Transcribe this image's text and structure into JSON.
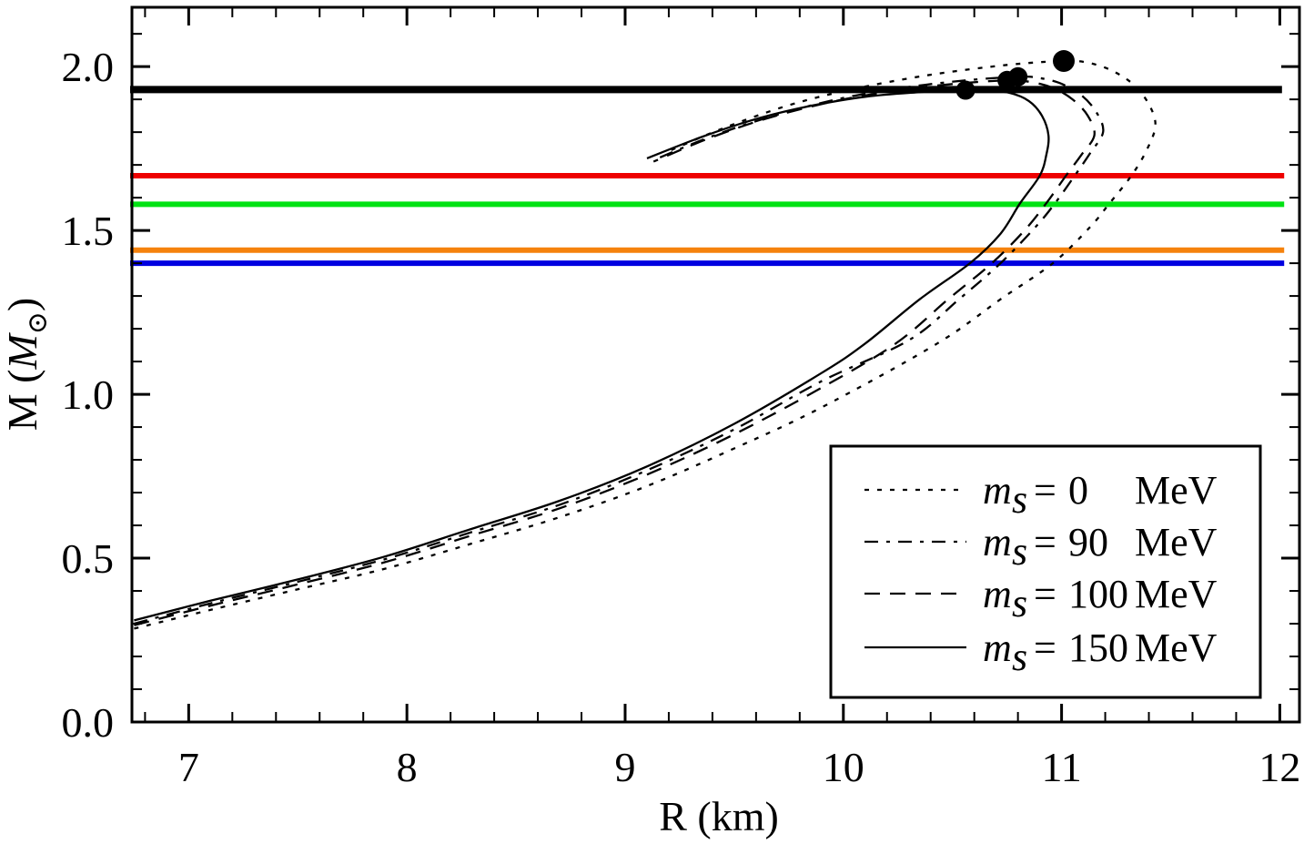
{
  "chart_data": {
    "type": "line",
    "title": "",
    "xlabel": "R (km)",
    "ylabel_pre": "M (",
    "ylabel_M": "M",
    "ylabel_sun": "⊙",
    "ylabel_close": ")",
    "xlim": [
      6.74,
      12.09
    ],
    "ylim": [
      0,
      2.181
    ],
    "grid": false,
    "x_major_ticks": [
      {
        "v": 7,
        "label": "7"
      },
      {
        "v": 8,
        "label": "8"
      },
      {
        "v": 9,
        "label": "9"
      },
      {
        "v": 10,
        "label": "10"
      },
      {
        "v": 11,
        "label": "11"
      },
      {
        "v": 12,
        "label": "12"
      }
    ],
    "x_minor_step": 0.2,
    "y_major_ticks": [
      {
        "v": 0.0,
        "label": "0.0"
      },
      {
        "v": 0.5,
        "label": "0.5"
      },
      {
        "v": 1.0,
        "label": "1.0"
      },
      {
        "v": 1.5,
        "label": "1.5"
      },
      {
        "v": 2.0,
        "label": "2.0"
      }
    ],
    "y_minor_step": 0.1,
    "horizontal_lines": [
      {
        "name": "mass-limit-black",
        "color": "#000000",
        "M": 1.93,
        "R_start": 6.74,
        "R_end": 12.01,
        "thickness": 8
      },
      {
        "name": "mass-limit-red",
        "color": "#ee0000",
        "M": 1.667,
        "R_start": 6.74,
        "R_end": 12.02,
        "thickness": 6
      },
      {
        "name": "mass-limit-green",
        "color": "#00e213",
        "M": 1.58,
        "R_start": 6.74,
        "R_end": 12.02,
        "thickness": 6
      },
      {
        "name": "mass-limit-orange",
        "color": "#f5820c",
        "M": 1.44,
        "R_start": 6.74,
        "R_end": 12.02,
        "thickness": 6
      },
      {
        "name": "mass-limit-blue",
        "color": "#0000e0",
        "M": 1.4,
        "R_start": 6.74,
        "R_end": 12.02,
        "thickness": 6
      }
    ],
    "series": [
      {
        "id": "ms0",
        "ms_value": "0",
        "label": "m_s = 0 MeV",
        "style": "dotted",
        "points": [
          [
            6.75,
            0.285
          ],
          [
            7.1,
            0.342
          ],
          [
            7.5,
            0.405
          ],
          [
            7.9,
            0.468
          ],
          [
            8.3,
            0.545
          ],
          [
            8.7,
            0.625
          ],
          [
            9.1,
            0.72
          ],
          [
            9.5,
            0.835
          ],
          [
            9.9,
            0.96
          ],
          [
            10.43,
            1.155
          ],
          [
            10.72,
            1.29
          ],
          [
            10.96,
            1.4
          ],
          [
            11.13,
            1.51
          ],
          [
            11.22,
            1.583
          ],
          [
            11.32,
            1.667
          ],
          [
            11.39,
            1.745
          ],
          [
            11.43,
            1.82
          ],
          [
            11.4,
            1.885
          ],
          [
            11.33,
            1.945
          ],
          [
            11.23,
            1.988
          ],
          [
            11.12,
            2.012
          ],
          [
            11.01,
            2.017
          ],
          [
            10.75,
            2.005
          ],
          [
            10.4,
            1.975
          ],
          [
            10.05,
            1.932
          ],
          [
            9.75,
            1.882
          ],
          [
            9.45,
            1.812
          ],
          [
            9.2,
            1.742
          ]
        ]
      },
      {
        "id": "ms90",
        "ms_value": "90",
        "label": "m_s = 90 MeV",
        "style": "dashdot",
        "points": [
          [
            6.75,
            0.3
          ],
          [
            7.1,
            0.362
          ],
          [
            7.5,
            0.428
          ],
          [
            7.9,
            0.497
          ],
          [
            8.3,
            0.58
          ],
          [
            8.7,
            0.663
          ],
          [
            9.1,
            0.768
          ],
          [
            9.5,
            0.893
          ],
          [
            9.9,
            1.04
          ],
          [
            10.3,
            1.165
          ],
          [
            10.53,
            1.29
          ],
          [
            10.72,
            1.4
          ],
          [
            10.88,
            1.51
          ],
          [
            10.97,
            1.583
          ],
          [
            11.06,
            1.667
          ],
          [
            11.13,
            1.735
          ],
          [
            11.19,
            1.8
          ],
          [
            11.16,
            1.86
          ],
          [
            11.09,
            1.913
          ],
          [
            10.99,
            1.95
          ],
          [
            10.89,
            1.966
          ],
          [
            10.8,
            1.969
          ],
          [
            10.56,
            1.958
          ],
          [
            10.27,
            1.935
          ],
          [
            9.97,
            1.9
          ],
          [
            9.67,
            1.848
          ],
          [
            9.4,
            1.788
          ],
          [
            9.15,
            1.72
          ]
        ]
      },
      {
        "id": "ms100",
        "ms_value": "100",
        "label": "m_s = 100 MeV",
        "style": "dashed",
        "points": [
          [
            6.75,
            0.295
          ],
          [
            7.1,
            0.355
          ],
          [
            7.5,
            0.42
          ],
          [
            7.9,
            0.488
          ],
          [
            8.3,
            0.57
          ],
          [
            8.7,
            0.652
          ],
          [
            9.1,
            0.755
          ],
          [
            9.5,
            0.878
          ],
          [
            9.9,
            1.02
          ],
          [
            10.24,
            1.155
          ],
          [
            10.48,
            1.29
          ],
          [
            10.68,
            1.4
          ],
          [
            10.83,
            1.5
          ],
          [
            10.93,
            1.583
          ],
          [
            11.02,
            1.667
          ],
          [
            11.09,
            1.73
          ],
          [
            11.15,
            1.79
          ],
          [
            11.12,
            1.85
          ],
          [
            11.05,
            1.9
          ],
          [
            10.96,
            1.935
          ],
          [
            10.86,
            1.953
          ],
          [
            10.75,
            1.958
          ],
          [
            10.52,
            1.948
          ],
          [
            10.25,
            1.928
          ],
          [
            9.95,
            1.893
          ],
          [
            9.65,
            1.842
          ],
          [
            9.38,
            1.78
          ],
          [
            9.13,
            1.71
          ]
        ]
      },
      {
        "id": "ms150",
        "ms_value": "150",
        "label": "m_s = 150 MeV",
        "style": "solid",
        "points": [
          [
            6.75,
            0.31
          ],
          [
            7.1,
            0.37
          ],
          [
            7.5,
            0.435
          ],
          [
            7.9,
            0.505
          ],
          [
            8.3,
            0.59
          ],
          [
            8.7,
            0.675
          ],
          [
            9.1,
            0.78
          ],
          [
            9.5,
            0.91
          ],
          [
            9.9,
            1.065
          ],
          [
            10.1,
            1.155
          ],
          [
            10.35,
            1.29
          ],
          [
            10.58,
            1.4
          ],
          [
            10.72,
            1.49
          ],
          [
            10.81,
            1.583
          ],
          [
            10.9,
            1.667
          ],
          [
            10.93,
            1.73
          ],
          [
            10.94,
            1.79
          ],
          [
            10.91,
            1.85
          ],
          [
            10.85,
            1.895
          ],
          [
            10.76,
            1.92
          ],
          [
            10.64,
            1.928
          ],
          [
            10.52,
            1.928
          ],
          [
            10.35,
            1.922
          ],
          [
            10.1,
            1.908
          ],
          [
            9.85,
            1.88
          ],
          [
            9.6,
            1.84
          ],
          [
            9.35,
            1.785
          ],
          [
            9.1,
            1.72
          ]
        ]
      }
    ],
    "max_mass_points": [
      {
        "series": "ms150",
        "R": 10.56,
        "M": 1.928,
        "radius": 10.5
      },
      {
        "series": "ms100",
        "R": 10.75,
        "M": 1.958,
        "radius": 10.5
      },
      {
        "series": "ms90",
        "R": 10.8,
        "M": 1.969,
        "radius": 10.5
      },
      {
        "series": "ms0",
        "R": 11.01,
        "M": 2.017,
        "radius": 12
      }
    ],
    "legend": {
      "position": "lower right",
      "symbol": "m",
      "symbol_sub": "s",
      "eq": "=",
      "unit": "MeV",
      "rows": [
        {
          "style": "dotted",
          "value": "0"
        },
        {
          "style": "dashdot",
          "value": "90"
        },
        {
          "style": "dashed",
          "value": "100"
        },
        {
          "style": "solid",
          "value": "150"
        }
      ]
    }
  }
}
